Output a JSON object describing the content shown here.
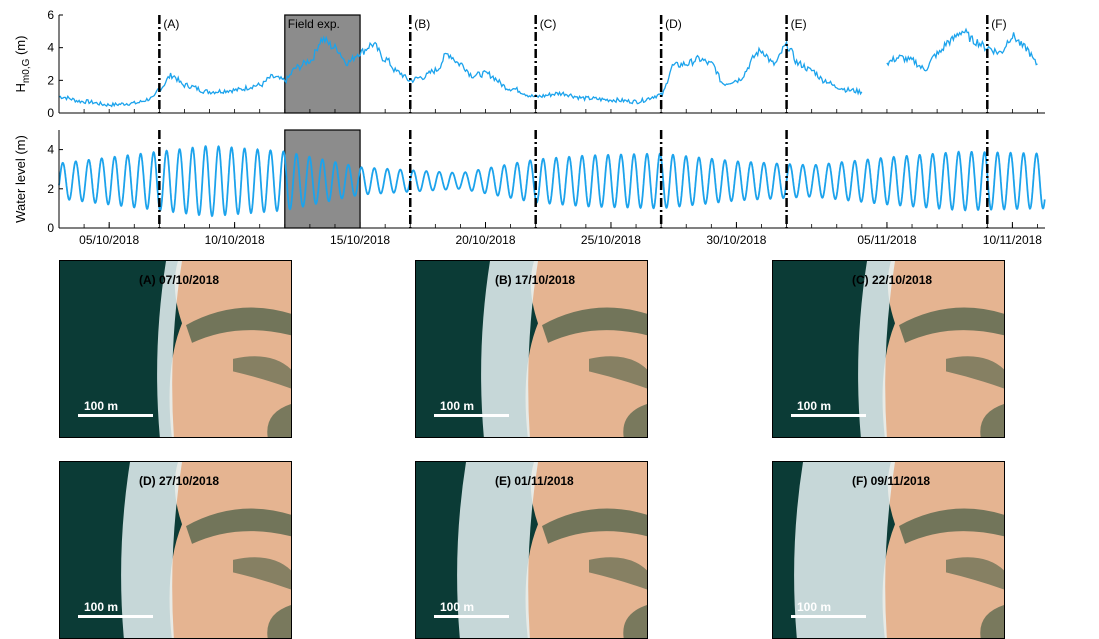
{
  "chart_data": [
    {
      "type": "line",
      "ylabel": "H",
      "ylabel_sub": "m0,G",
      "ylabel_unit": " (m)",
      "ylim": [
        0,
        6
      ],
      "yticks": [
        0,
        2,
        4,
        6
      ],
      "xlim_day": [
        3.0,
        11.3
      ],
      "color": "#1ca3ec",
      "shaded_region": {
        "label": "Field exp.",
        "from": "12/10/2018",
        "to": "15/10/2018"
      },
      "events": [
        {
          "label": "(A)",
          "date": "07/10/2018"
        },
        {
          "label": "(B)",
          "date": "17/10/2018"
        },
        {
          "label": "(C)",
          "date": "22/10/2018"
        },
        {
          "label": "(D)",
          "date": "27/10/2018"
        },
        {
          "label": "(E)",
          "date": "01/11/2018"
        },
        {
          "label": "(F)",
          "date": "09/11/2018"
        }
      ],
      "x": [
        "03/10/2018",
        "04/10/2018",
        "05/10/2018",
        "06/10/2018",
        "06/10/2018 18:00",
        "07/10/2018",
        "07/10/2018 12:00",
        "08/10/2018",
        "09/10/2018",
        "10/10/2018",
        "11/10/2018",
        "11/10/2018 12:00",
        "12/10/2018",
        "12/10/2018 12:00",
        "13/10/2018",
        "13/10/2018 12:00",
        "14/10/2018",
        "14/10/2018 12:00",
        "15/10/2018",
        "15/10/2018 12:00",
        "16/10/2018",
        "16/10/2018 12:00",
        "17/10/2018",
        "17/10/2018 12:00",
        "18/10/2018",
        "18/10/2018 12:00",
        "19/10/2018",
        "19/10/2018 12:00",
        "20/10/2018",
        "21/10/2018",
        "22/10/2018",
        "23/10/2018",
        "24/10/2018",
        "25/10/2018",
        "26/10/2018",
        "27/10/2018",
        "27/10/2018 12:00",
        "28/10/2018",
        "28/10/2018 12:00",
        "29/10/2018",
        "29/10/2018 12:00",
        "30/10/2018",
        "31/10/2018",
        "31/10/2018 12:00",
        "01/11/2018",
        "01/11/2018 12:00",
        "02/11/2018",
        "02/11/2018 12:00",
        "03/11/2018",
        "03/11/2018 12:00",
        "04/11/2018"
      ],
      "values": [
        1.0,
        0.7,
        0.5,
        0.6,
        0.9,
        1.5,
        2.3,
        1.7,
        1.3,
        1.4,
        1.7,
        2.2,
        2.0,
        2.8,
        3.2,
        4.5,
        4.0,
        3.1,
        3.7,
        4.2,
        3.3,
        2.5,
        2.0,
        2.2,
        2.6,
        3.6,
        3.0,
        2.3,
        2.4,
        1.5,
        1.0,
        1.2,
        0.9,
        0.8,
        0.7,
        1.1,
        2.9,
        3.0,
        3.3,
        3.0,
        1.8,
        2.0,
        3.8,
        3.0,
        4.1,
        3.0,
        2.6,
        2.0,
        1.6,
        1.4,
        1.3
      ],
      "series2": {
        "x": [
          "05/11/2018",
          "05/11/2018 12:00",
          "06/11/2018",
          "06/11/2018 12:00",
          "07/11/2018",
          "07/11/2018 12:00",
          "08/11/2018",
          "08/11/2018 12:00",
          "09/11/2018",
          "09/11/2018 12:00",
          "10/11/2018",
          "10/11/2018 12:00",
          "11/11/2018"
        ],
        "values": [
          3.1,
          3.4,
          3.2,
          2.7,
          3.6,
          4.4,
          5.0,
          4.4,
          4.0,
          3.7,
          4.7,
          4.0,
          3.0
        ]
      }
    },
    {
      "type": "line",
      "ylabel": "Water level (m)",
      "ylim": [
        0,
        5
      ],
      "yticks": [
        0,
        2,
        4
      ],
      "color": "#1ca3ec",
      "mean": 2.4,
      "amplitude_by_day": [
        {
          "day": "03/10/2018",
          "amp": 0.9
        },
        {
          "day": "07/10/2018",
          "amp": 1.5
        },
        {
          "day": "09/10/2018",
          "amp": 1.8
        },
        {
          "day": "12/10/2018",
          "amp": 1.5
        },
        {
          "day": "15/10/2018",
          "amp": 0.7
        },
        {
          "day": "19/10/2018",
          "amp": 0.4
        },
        {
          "day": "22/10/2018",
          "amp": 1.1
        },
        {
          "day": "24/10/2018",
          "amp": 1.3
        },
        {
          "day": "27/10/2018",
          "amp": 1.4
        },
        {
          "day": "30/10/2018",
          "amp": 1.0
        },
        {
          "day": "02/11/2018",
          "amp": 0.8
        },
        {
          "day": "05/11/2018",
          "amp": 1.2
        },
        {
          "day": "08/11/2018",
          "amp": 1.5
        },
        {
          "day": "11/11/2018",
          "amp": 1.4
        }
      ],
      "xticks": [
        "05/10/2018",
        "10/10/2018",
        "15/10/2018",
        "20/10/2018",
        "25/10/2018",
        "30/10/2018",
        "05/11/2018",
        "10/11/2018"
      ]
    }
  ],
  "photos": [
    {
      "label": "(A) 07/10/2018",
      "scale": "100 m",
      "foam": 0.05
    },
    {
      "label": "(B) 17/10/2018",
      "scale": "100 m",
      "foam": 0.45
    },
    {
      "label": "(C) 22/10/2018",
      "scale": "100 m",
      "foam": 0.2
    },
    {
      "label": "(D) 27/10/2018",
      "scale": "100 m",
      "foam": 0.5
    },
    {
      "label": "(E) 01/11/2018",
      "scale": "100 m",
      "foam": 0.75
    },
    {
      "label": "(F) 09/11/2018",
      "scale": "100 m",
      "foam": 1.0
    }
  ],
  "colors": {
    "sea": "#0b3b36",
    "sand": "#e5b491",
    "foam": "#e8f3f4",
    "channel": "#5e6a50",
    "line": "#1ca3ec"
  }
}
